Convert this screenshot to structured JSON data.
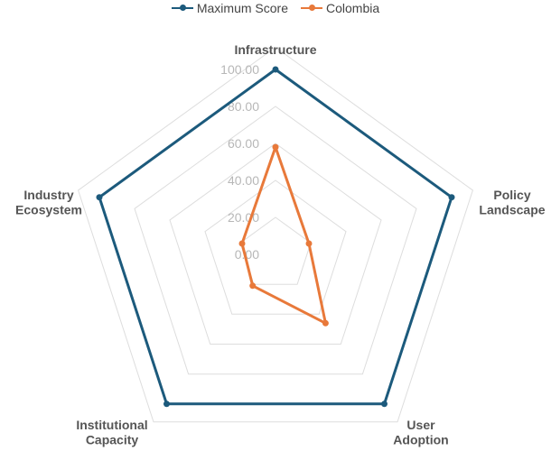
{
  "chart_data": {
    "type": "radar",
    "axes": [
      {
        "lines": [
          "Infrastructure"
        ]
      },
      {
        "lines": [
          "Policy",
          "Landscape"
        ]
      },
      {
        "lines": [
          "User",
          "Adoption"
        ]
      },
      {
        "lines": [
          "Institutional",
          "Capacity"
        ]
      },
      {
        "lines": [
          "Industry",
          "Ecosystem"
        ]
      }
    ],
    "rlim": [
      0,
      100
    ],
    "ticks": [
      0,
      20,
      40,
      60,
      80,
      100
    ],
    "tick_labels": [
      "0.00",
      "20.00",
      "40.00",
      "60.00",
      "80.00",
      "100.00"
    ],
    "grid": true,
    "legend_position": "top-center",
    "series": [
      {
        "name": "Maximum Score",
        "color": "#1c5a7c",
        "values": [
          100,
          100,
          100,
          100,
          100
        ]
      },
      {
        "name": "Colombia",
        "color": "#e8793a",
        "values": [
          58,
          19,
          46,
          21,
          19
        ]
      }
    ]
  }
}
